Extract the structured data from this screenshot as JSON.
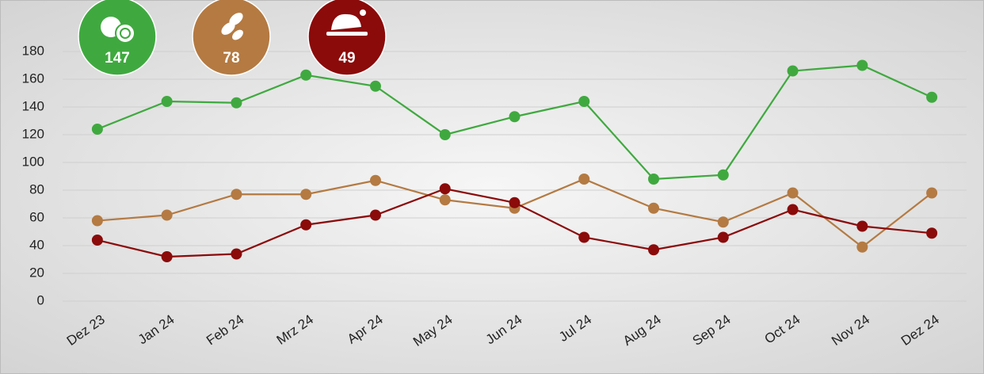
{
  "chart_data": {
    "type": "line",
    "categories": [
      "Dez 23",
      "Jan 24",
      "Feb 24",
      "Mrz 24",
      "Apr 24",
      "May 24",
      "Jun 24",
      "Jul 24",
      "Aug 24",
      "Sep 24",
      "Oct 24",
      "Nov 24",
      "Dez 24"
    ],
    "series": [
      {
        "color": "#3fa93f",
        "values": [
          124,
          144,
          143,
          163,
          155,
          120,
          133,
          144,
          88,
          91,
          166,
          170,
          147
        ]
      },
      {
        "color": "#b47a42",
        "values": [
          58,
          62,
          77,
          77,
          87,
          73,
          67,
          88,
          67,
          57,
          78,
          39,
          78
        ]
      },
      {
        "color": "#8b0a0a",
        "values": [
          44,
          32,
          34,
          55,
          62,
          81,
          71,
          46,
          37,
          46,
          66,
          54,
          49
        ]
      }
    ],
    "ylim": [
      0,
      200
    ],
    "yticks": [
      0,
      20,
      40,
      60,
      80,
      100,
      120,
      140,
      160,
      180
    ],
    "grid": true
  }
}
